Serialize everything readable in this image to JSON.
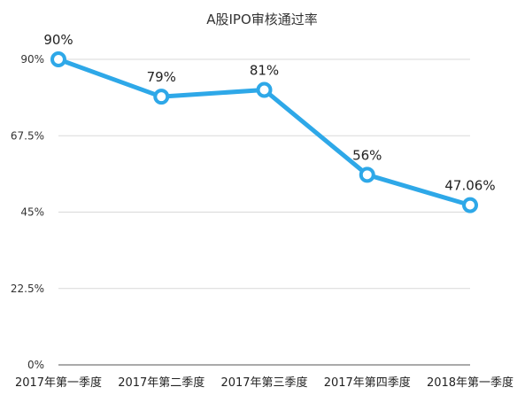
{
  "chart_data": {
    "type": "line",
    "title": "A股IPO审核通过率",
    "xlabel": "",
    "ylabel": "",
    "categories": [
      "2017年第一季度",
      "2017年第二季度",
      "2017年第三季度",
      "2017年第四季度",
      "2018年第一季度"
    ],
    "series": [
      {
        "values": [
          90,
          79,
          81,
          56,
          47.06
        ],
        "data_labels": [
          "90%",
          "79%",
          "81%",
          "56%",
          "47.06%"
        ]
      }
    ],
    "y_ticks": [
      0,
      22.5,
      45,
      67.5,
      90
    ],
    "y_tick_labels": [
      "0%",
      "22.5%",
      "45%",
      "67.5%",
      "90%"
    ],
    "ylim": [
      0,
      90
    ],
    "grid": true,
    "legend": "none",
    "colors": {
      "series": "#2ea8e8",
      "grid": "#d9d9d9"
    }
  }
}
